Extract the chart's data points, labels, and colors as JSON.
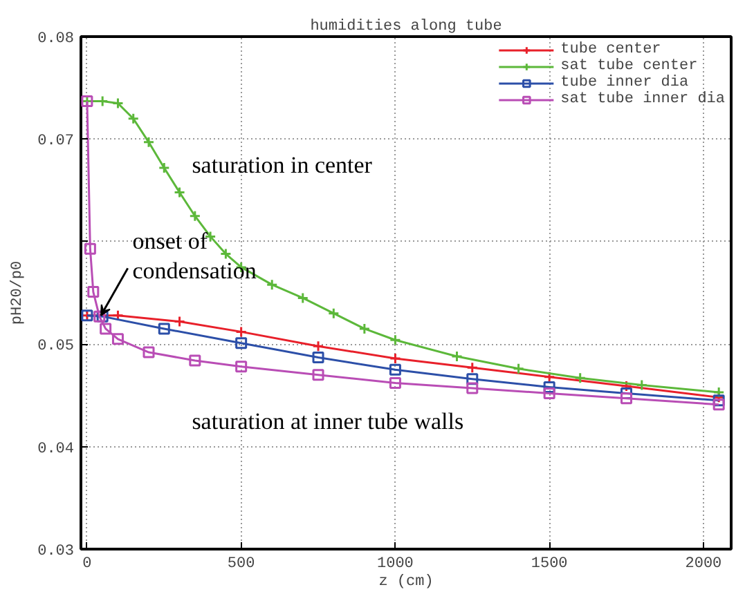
{
  "chart_data": {
    "type": "line",
    "title": "humidities along tube",
    "xlabel": "z (cm)",
    "ylabel": "pH20/p0",
    "xlim": [
      -20,
      2090
    ],
    "ylim": [
      0.03,
      0.08
    ],
    "xticks": [
      0,
      500,
      1000,
      1500,
      2000
    ],
    "yticks": [
      0.03,
      0.04,
      0.05,
      {
        "value": 0.06,
        "label": null
      },
      0.07,
      0.08
    ],
    "grid": true,
    "legend": "top right",
    "series": [
      {
        "name": "tube center",
        "color": "#e8202a",
        "marker": "cross",
        "x": [
          0,
          100,
          300,
          500,
          750,
          1000,
          1250,
          1500,
          1750,
          2050
        ],
        "values": [
          0.0528,
          0.0528,
          0.0522,
          0.0512,
          0.0498,
          0.0486,
          0.0477,
          0.0468,
          0.0459,
          0.0448
        ]
      },
      {
        "name": "sat tube center",
        "color": "#5cb83a",
        "marker": "cross",
        "x": [
          0,
          50,
          100,
          150,
          200,
          250,
          300,
          350,
          400,
          450,
          500,
          600,
          700,
          800,
          900,
          1000,
          1200,
          1400,
          1600,
          1800,
          2050
        ],
        "values": [
          0.0737,
          0.0737,
          0.0735,
          0.072,
          0.0697,
          0.0672,
          0.0648,
          0.0625,
          0.0605,
          0.0588,
          0.0575,
          0.0558,
          0.0545,
          0.053,
          0.0515,
          0.0504,
          0.0488,
          0.0476,
          0.0467,
          0.046,
          0.0453
        ]
      },
      {
        "name": "tube inner dia",
        "color": "#2c4fa8",
        "marker": "square",
        "x": [
          0,
          50,
          250,
          500,
          750,
          1000,
          1250,
          1500,
          1750,
          2050
        ],
        "values": [
          0.0528,
          0.0527,
          0.0515,
          0.0501,
          0.0487,
          0.0475,
          0.0466,
          0.0458,
          0.0452,
          0.0445
        ]
      },
      {
        "name": "sat tube inner dia",
        "color": "#b94db5",
        "marker": "square",
        "x": [
          0,
          10,
          20,
          40,
          60,
          100,
          200,
          350,
          500,
          750,
          1000,
          1250,
          1500,
          1750,
          2050
        ],
        "values": [
          0.0737,
          0.0593,
          0.0551,
          0.0527,
          0.0515,
          0.0505,
          0.0492,
          0.0484,
          0.0478,
          0.047,
          0.0462,
          0.0457,
          0.0452,
          0.0447,
          0.0441
        ]
      }
    ],
    "annotations": [
      "saturation in center",
      {
        "text": "onset of\ncondensation",
        "x": 45,
        "y": 0.0528
      },
      "saturation at inner tube walls"
    ]
  }
}
